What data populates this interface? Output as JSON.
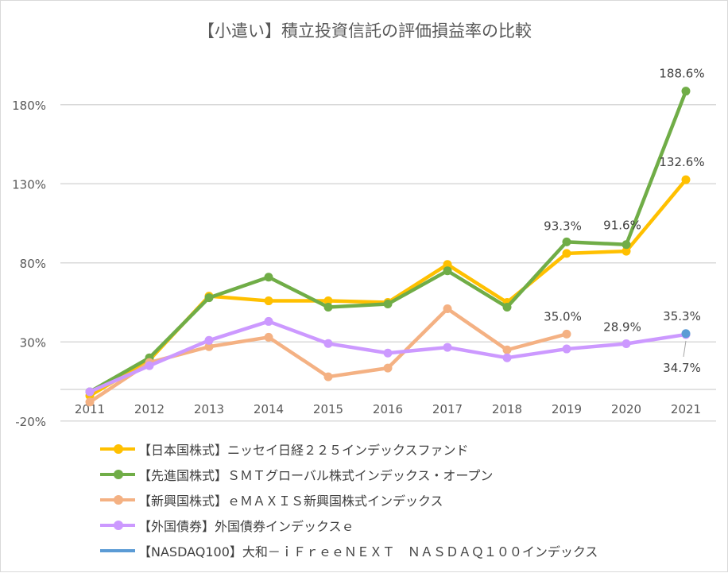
{
  "chart_data": {
    "type": "line",
    "title": "【小遣い】積立投資信託の評価損益率の比較",
    "categories": [
      "2011",
      "2012",
      "2013",
      "2014",
      "2015",
      "2016",
      "2017",
      "2018",
      "2019",
      "2020",
      "2021"
    ],
    "ylim": [
      -20,
      200
    ],
    "yticks": [
      -20,
      30,
      80,
      130,
      180
    ],
    "ytick_labels": [
      "-20%",
      "30%",
      "80%",
      "130%",
      "180%"
    ],
    "grid": true,
    "legend_position": "bottom",
    "series": [
      {
        "name": "【日本国株式】ニッセイ日経２２５インデックスファンド",
        "color": "#FFC000",
        "values": [
          -4,
          18.6,
          59,
          56,
          56,
          55,
          79,
          55,
          86,
          87.4,
          132.6
        ]
      },
      {
        "name": "【先進国株式】ＳＭＴグローバル株式インデックス・オープン",
        "color": "#70AD47",
        "values": [
          -1.5,
          20,
          58,
          71,
          52,
          54,
          75,
          52,
          93.3,
          91.6,
          188.6
        ]
      },
      {
        "name": "【新興国株式】ｅＭＡＸＩＳ新興国株式インデックス",
        "color": "#F4B183",
        "values": [
          -8,
          17,
          27,
          33,
          8,
          13.5,
          51,
          25,
          35.0,
          null,
          null
        ]
      },
      {
        "name": "【外国債券】外国債券インデックスｅ",
        "color": "#CC99FF",
        "values": [
          -1.5,
          15,
          31,
          43,
          29,
          23,
          26.6,
          20,
          25.6,
          28.9,
          34.7
        ]
      },
      {
        "name": "【NASDAQ100】大和－ｉＦｒｅｅＮＥＸＴ　ＮＡＳＤＡＱ１００インデックス",
        "color": "#5B9BD5",
        "values": [
          null,
          null,
          null,
          null,
          null,
          null,
          null,
          null,
          null,
          null,
          35.3
        ]
      }
    ],
    "data_labels": [
      {
        "text": "188.6%",
        "series": 1,
        "index": 10
      },
      {
        "text": "132.6%",
        "series": 0,
        "index": 10
      },
      {
        "text": "93.3%",
        "series": 1,
        "index": 8
      },
      {
        "text": "91.6%",
        "series": 1,
        "index": 9
      },
      {
        "text": "35.0%",
        "series": 2,
        "index": 8
      },
      {
        "text": "28.9%",
        "series": 3,
        "index": 9
      },
      {
        "text": "35.3%",
        "series": 4,
        "index": 10
      },
      {
        "text": "34.7%",
        "series": 3,
        "index": 10
      }
    ]
  }
}
